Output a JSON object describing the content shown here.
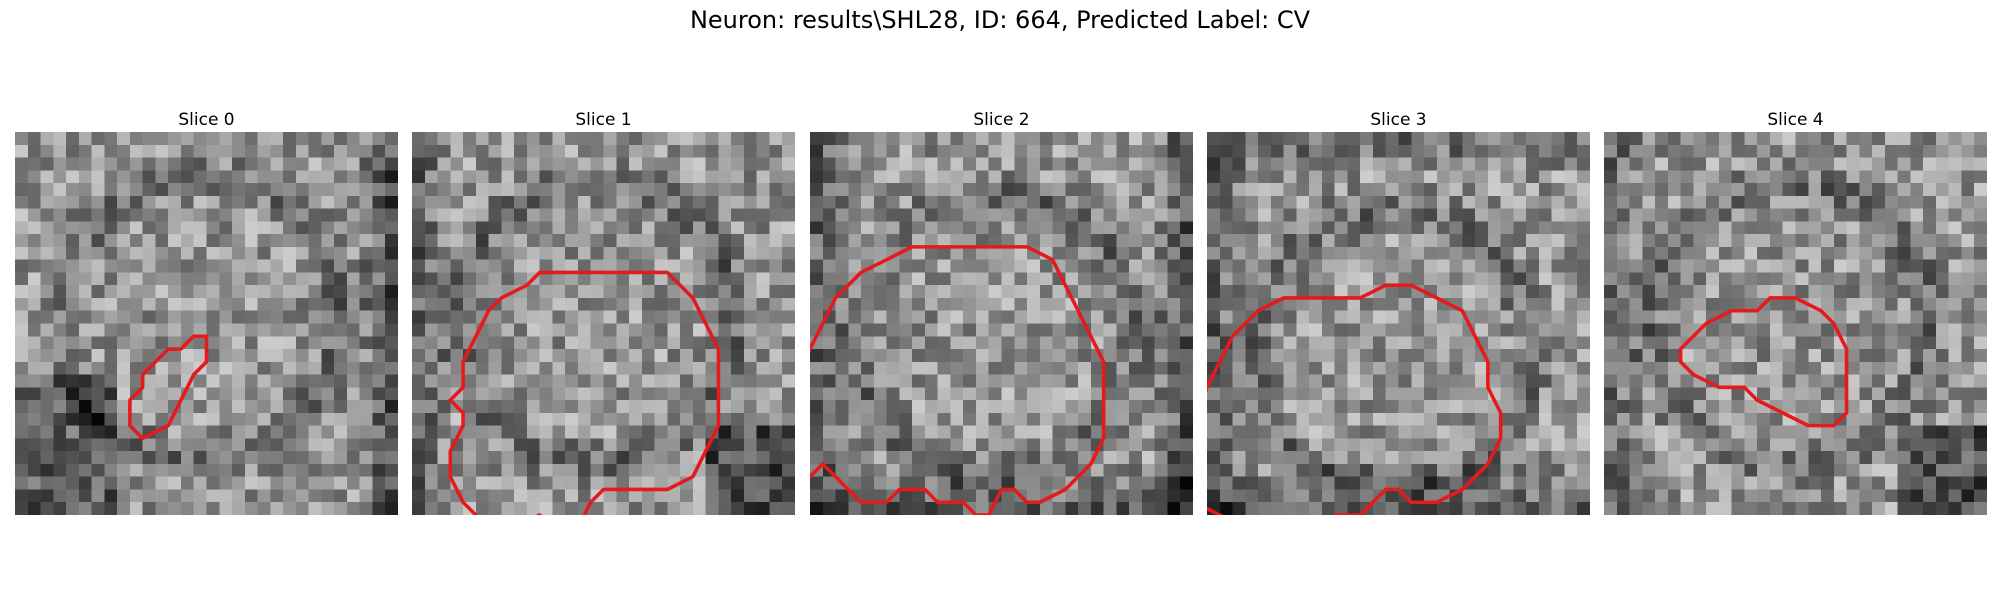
{
  "figure": {
    "title": "Neuron: results\\SHL28, ID: 664, Predicted Label: CV"
  },
  "panels": [
    {
      "title": "Slice 0",
      "seed": 11,
      "dark_edges": [
        "right",
        "bottom-left"
      ],
      "contour": [
        [
          13,
          17
        ],
        [
          14,
          16
        ],
        [
          15,
          16
        ],
        [
          15,
          18
        ],
        [
          14,
          19
        ],
        [
          13,
          21
        ],
        [
          12,
          23
        ],
        [
          10,
          24
        ],
        [
          9,
          23
        ],
        [
          9,
          21
        ],
        [
          10,
          20
        ],
        [
          10,
          19
        ],
        [
          11,
          18
        ],
        [
          12,
          17
        ]
      ]
    },
    {
      "title": "Slice 1",
      "seed": 23,
      "dark_edges": [
        "left",
        "bottom-right"
      ],
      "contour": [
        [
          13,
          11
        ],
        [
          17,
          11
        ],
        [
          20,
          11
        ],
        [
          22,
          13
        ],
        [
          23,
          15
        ],
        [
          24,
          17
        ],
        [
          24,
          20
        ],
        [
          24,
          23
        ],
        [
          23,
          25
        ],
        [
          22,
          27
        ],
        [
          20,
          28
        ],
        [
          17,
          28
        ],
        [
          15,
          28
        ],
        [
          14,
          29
        ],
        [
          13,
          31
        ],
        [
          11,
          31
        ],
        [
          10,
          30
        ],
        [
          8,
          31
        ],
        [
          6,
          31
        ],
        [
          5,
          30
        ],
        [
          4,
          29
        ],
        [
          3,
          27
        ],
        [
          3,
          25
        ],
        [
          4,
          23
        ],
        [
          4,
          22
        ],
        [
          3,
          21
        ],
        [
          4,
          20
        ],
        [
          4,
          18
        ],
        [
          5,
          16
        ],
        [
          6,
          14
        ],
        [
          7,
          13
        ],
        [
          9,
          12
        ],
        [
          10,
          11
        ]
      ]
    },
    {
      "title": "Slice 2",
      "seed": 37,
      "dark_edges": [
        "left",
        "right",
        "bottom"
      ],
      "contour": [
        [
          10,
          9
        ],
        [
          14,
          9
        ],
        [
          17,
          9
        ],
        [
          19,
          10
        ],
        [
          20,
          12
        ],
        [
          21,
          14
        ],
        [
          22,
          16
        ],
        [
          23,
          18
        ],
        [
          23,
          21
        ],
        [
          23,
          24
        ],
        [
          22,
          26
        ],
        [
          20,
          28
        ],
        [
          18,
          29
        ],
        [
          17,
          29
        ],
        [
          16,
          28
        ],
        [
          15,
          28
        ],
        [
          14,
          30
        ],
        [
          13,
          30
        ],
        [
          12,
          29
        ],
        [
          10,
          29
        ],
        [
          9,
          28
        ],
        [
          7,
          28
        ],
        [
          6,
          29
        ],
        [
          4,
          29
        ],
        [
          3,
          28
        ],
        [
          2,
          27
        ],
        [
          1,
          26
        ],
        [
          0,
          27
        ],
        [
          -1,
          26
        ],
        [
          -1,
          23
        ],
        [
          -1,
          19
        ],
        [
          0,
          17
        ],
        [
          1,
          15
        ],
        [
          2,
          13
        ],
        [
          4,
          11
        ],
        [
          6,
          10
        ],
        [
          8,
          9
        ]
      ]
    },
    {
      "title": "Slice 3",
      "seed": 51,
      "dark_edges": [
        "top",
        "bottom",
        "left"
      ],
      "contour": [
        [
          12,
          13
        ],
        [
          14,
          12
        ],
        [
          16,
          12
        ],
        [
          18,
          13
        ],
        [
          20,
          14
        ],
        [
          21,
          16
        ],
        [
          22,
          18
        ],
        [
          22,
          20
        ],
        [
          23,
          22
        ],
        [
          23,
          24
        ],
        [
          22,
          26
        ],
        [
          21,
          27
        ],
        [
          20,
          28
        ],
        [
          18,
          29
        ],
        [
          16,
          29
        ],
        [
          15,
          28
        ],
        [
          14,
          28
        ],
        [
          13,
          29
        ],
        [
          12,
          30
        ],
        [
          10,
          30
        ],
        [
          9,
          31
        ],
        [
          7,
          31
        ],
        [
          6,
          32
        ],
        [
          5,
          33
        ],
        [
          4,
          32
        ],
        [
          3,
          31
        ],
        [
          1,
          30
        ],
        [
          -1,
          29
        ],
        [
          -1,
          26
        ],
        [
          -1,
          23
        ],
        [
          0,
          20
        ],
        [
          1,
          18
        ],
        [
          2,
          16
        ],
        [
          4,
          14
        ],
        [
          6,
          13
        ],
        [
          9,
          13
        ]
      ]
    },
    {
      "title": "Slice 4",
      "seed": 67,
      "dark_edges": [
        "left",
        "bottom-right"
      ],
      "contour": [
        [
          12,
          14
        ],
        [
          13,
          13
        ],
        [
          15,
          13
        ],
        [
          17,
          14
        ],
        [
          18,
          15
        ],
        [
          19,
          17
        ],
        [
          19,
          19
        ],
        [
          19,
          22
        ],
        [
          18,
          23
        ],
        [
          16,
          23
        ],
        [
          14,
          22
        ],
        [
          12,
          21
        ],
        [
          11,
          20
        ],
        [
          9,
          20
        ],
        [
          7,
          19
        ],
        [
          6,
          18
        ],
        [
          6,
          17
        ],
        [
          7,
          16
        ],
        [
          8,
          15
        ],
        [
          10,
          14
        ]
      ]
    }
  ],
  "colors": {
    "contour": "#e41a1c",
    "background": "#ffffff"
  }
}
